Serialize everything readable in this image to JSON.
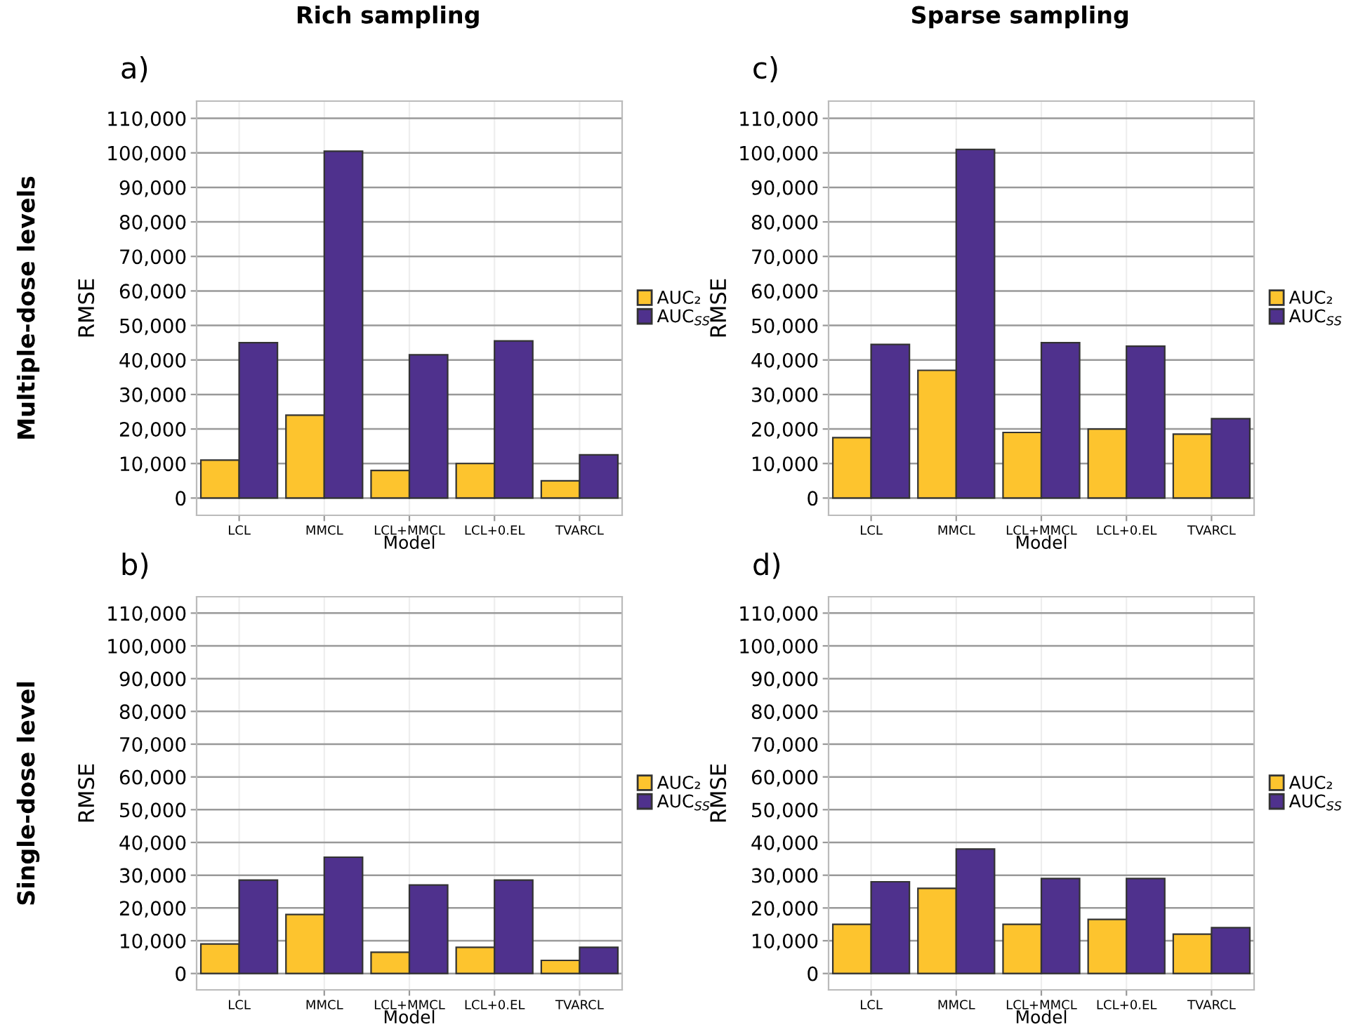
{
  "chart_data": [
    {
      "type": "bar",
      "title": "a)",
      "subtitle": "Rich sampling",
      "annotations": [
        "Multiple-dose levels"
      ],
      "xlabel": "Model",
      "ylabel": "RMSE",
      "categories": [
        "LCL",
        "MMCL",
        "LCL+MMCL",
        "LCL+0.EL",
        "TVARCL"
      ],
      "series": [
        {
          "name": "AUC₂",
          "color": "#fdc42e",
          "values": [
            11000,
            24000,
            8000,
            10000,
            5000
          ]
        },
        {
          "name": "AUC$_{SS}$",
          "color": "#4f318d",
          "values": [
            45000,
            100500,
            41500,
            45500,
            12500
          ]
        }
      ],
      "ylim": [
        -5000,
        115000
      ],
      "yticks": [
        {
          "value": 0,
          "label": "0"
        },
        {
          "value": 10000,
          "label": "10,000"
        },
        {
          "value": 20000,
          "label": "20,000"
        },
        {
          "value": 30000,
          "label": "30,000"
        },
        {
          "value": 40000,
          "label": "40,000"
        },
        {
          "value": 50000,
          "label": "50,000"
        },
        {
          "value": 60000,
          "label": "60,000"
        },
        {
          "value": 70000,
          "label": "70,000"
        },
        {
          "value": 80000,
          "label": "80,000"
        },
        {
          "value": 90000,
          "label": "90,000"
        },
        {
          "value": 100000,
          "label": "100,000"
        },
        {
          "value": 110000,
          "label": "110,000"
        }
      ],
      "grid": true,
      "legend": "right"
    },
    {
      "type": "bar",
      "title": "c)",
      "subtitle": "Sparse sampling",
      "xlabel": "Model",
      "ylabel": "RMSE",
      "categories": [
        "LCL",
        "MMCL",
        "LCL+MMCL",
        "LCL+0.EL",
        "TVARCL"
      ],
      "series": [
        {
          "name": "AUC₂",
          "color": "#fdc42e",
          "values": [
            17500,
            37000,
            19000,
            20000,
            18500
          ]
        },
        {
          "name": "AUC$_{SS}$",
          "color": "#4f318d",
          "values": [
            44500,
            101000,
            45000,
            44000,
            23000
          ]
        }
      ],
      "ylim": [
        -5000,
        115000
      ],
      "yticks": [
        {
          "value": 0,
          "label": "0"
        },
        {
          "value": 10000,
          "label": "10,000"
        },
        {
          "value": 20000,
          "label": "20,000"
        },
        {
          "value": 30000,
          "label": "30,000"
        },
        {
          "value": 40000,
          "label": "40,000"
        },
        {
          "value": 50000,
          "label": "50,000"
        },
        {
          "value": 60000,
          "label": "60,000"
        },
        {
          "value": 70000,
          "label": "70,000"
        },
        {
          "value": 80000,
          "label": "80,000"
        },
        {
          "value": 90000,
          "label": "90,000"
        },
        {
          "value": 100000,
          "label": "100,000"
        },
        {
          "value": 110000,
          "label": "110,000"
        }
      ],
      "grid": true,
      "legend": "right"
    },
    {
      "type": "bar",
      "title": "b)",
      "annotations": [
        "Single-dose level"
      ],
      "xlabel": "Model",
      "ylabel": "RMSE",
      "categories": [
        "LCL",
        "MMCL",
        "LCL+MMCL",
        "LCL+0.EL",
        "TVARCL"
      ],
      "series": [
        {
          "name": "AUC₂",
          "color": "#fdc42e",
          "values": [
            9000,
            18000,
            6500,
            8000,
            4000
          ]
        },
        {
          "name": "AUC$_{SS}$",
          "color": "#4f318d",
          "values": [
            28500,
            35500,
            27000,
            28500,
            8000
          ]
        }
      ],
      "ylim": [
        -5000,
        115000
      ],
      "yticks": [
        {
          "value": 0,
          "label": "0"
        },
        {
          "value": 10000,
          "label": "10,000"
        },
        {
          "value": 20000,
          "label": "20,000"
        },
        {
          "value": 30000,
          "label": "30,000"
        },
        {
          "value": 40000,
          "label": "40,000"
        },
        {
          "value": 50000,
          "label": "50,000"
        },
        {
          "value": 60000,
          "label": "60,000"
        },
        {
          "value": 70000,
          "label": "70,000"
        },
        {
          "value": 80000,
          "label": "80,000"
        },
        {
          "value": 90000,
          "label": "90,000"
        },
        {
          "value": 100000,
          "label": "100,000"
        },
        {
          "value": 110000,
          "label": "110,000"
        }
      ],
      "grid": true,
      "legend": "right"
    },
    {
      "type": "bar",
      "title": "d)",
      "xlabel": "Model",
      "ylabel": "RMSE",
      "categories": [
        "LCL",
        "MMCL",
        "LCL+MMCL",
        "LCL+0.EL",
        "TVARCL"
      ],
      "series": [
        {
          "name": "AUC₂",
          "color": "#fdc42e",
          "values": [
            15000,
            26000,
            15000,
            16500,
            12000
          ]
        },
        {
          "name": "AUC$_{SS}$",
          "color": "#4f318d",
          "values": [
            28000,
            38000,
            29000,
            29000,
            14000
          ]
        }
      ],
      "ylim": [
        -5000,
        115000
      ],
      "yticks": [
        {
          "value": 0,
          "label": "0"
        },
        {
          "value": 10000,
          "label": "10,000"
        },
        {
          "value": 20000,
          "label": "20,000"
        },
        {
          "value": 30000,
          "label": "30,000"
        },
        {
          "value": 40000,
          "label": "40,000"
        },
        {
          "value": 50000,
          "label": "50,000"
        },
        {
          "value": 60000,
          "label": "60,000"
        },
        {
          "value": 70000,
          "label": "70,000"
        },
        {
          "value": 80000,
          "label": "80,000"
        },
        {
          "value": 90000,
          "label": "90,000"
        },
        {
          "value": 100000,
          "label": "100,000"
        },
        {
          "value": 110000,
          "label": "110,000"
        }
      ],
      "grid": true,
      "legend": "right"
    }
  ]
}
